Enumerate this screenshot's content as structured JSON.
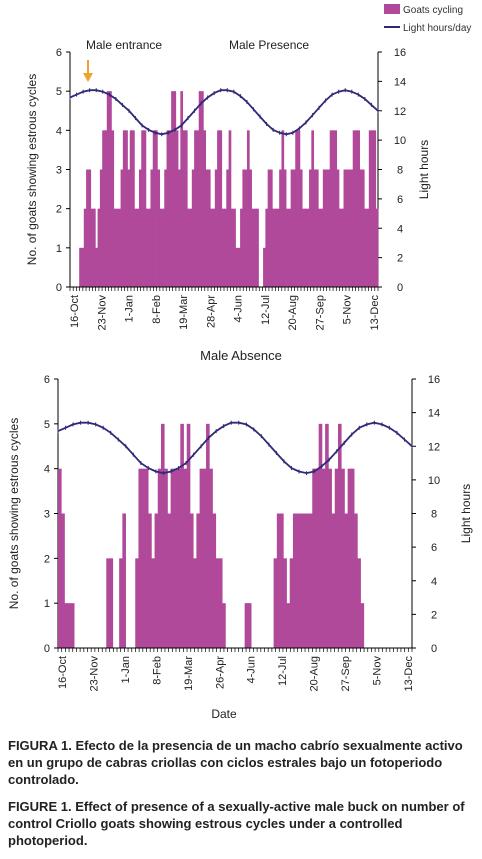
{
  "legend": {
    "bars": "Goats cycling",
    "line": "Light hours/day"
  },
  "colors": {
    "bar": "#b1499a",
    "line": "#2f2a78",
    "arrow": "#f0a030"
  },
  "chart_data": [
    {
      "type": "bar",
      "annotations": [
        "Male entrance",
        "Male Presence"
      ],
      "xlabel": "",
      "ylabel": "No. of goats showing estrous cycles",
      "y2label": "Light hours",
      "ylim": [
        0,
        6
      ],
      "y2lim": [
        0,
        16
      ],
      "yticks": [
        "0",
        "1",
        "2",
        "3",
        "4",
        "5",
        "6"
      ],
      "y2ticks": [
        "0",
        "2",
        "4",
        "6",
        "8",
        "10",
        "12",
        "14",
        "16"
      ],
      "categories": [
        "16-Oct",
        "23-Nov",
        "1-Jan",
        "8-Feb",
        "19-Mar",
        "28-Apr",
        "4-Jun",
        "12-Jul",
        "20-Aug",
        "27-Sep",
        "5-Nov",
        "13-Dec"
      ],
      "series_bars": {
        "name": "Goats cycling",
        "values": [
          0,
          0,
          0,
          0,
          1,
          1,
          2,
          3,
          3,
          2,
          2,
          1,
          2,
          3,
          4,
          4,
          5,
          5,
          4,
          2,
          2,
          2,
          3,
          4,
          4,
          3,
          4,
          4,
          2,
          2,
          3,
          4,
          4,
          2,
          2,
          3,
          4,
          4,
          3,
          2,
          2,
          3,
          4,
          4,
          5,
          5,
          4,
          3,
          5,
          4,
          4,
          2,
          2,
          3,
          4,
          4,
          5,
          5,
          4,
          3,
          3,
          2,
          2,
          3,
          4,
          4,
          2,
          2,
          3,
          4,
          2,
          2,
          1,
          1,
          2,
          3,
          3,
          4,
          3,
          2,
          2,
          2,
          0,
          0,
          1,
          2,
          3,
          3,
          2,
          2,
          2,
          3,
          4,
          3,
          2,
          2,
          3,
          3,
          4,
          4,
          3,
          2,
          2,
          2,
          3,
          4,
          3,
          3,
          2,
          2,
          3,
          3,
          3,
          4,
          4,
          4,
          3,
          2,
          2,
          3,
          3,
          3,
          3,
          4,
          4,
          4,
          3,
          3,
          2,
          2,
          4,
          4,
          4,
          2
        ]
      },
      "series_line": {
        "name": "Light hours/day",
        "values": [
          12.9,
          13.1,
          13.3,
          13.4,
          13.4,
          13.3,
          13.1,
          12.8,
          12.4,
          12.0,
          11.5,
          11.0,
          10.7,
          10.5,
          10.4,
          10.5,
          10.7,
          11.0,
          11.5,
          12.0,
          12.5,
          12.9,
          13.2,
          13.4,
          13.4,
          13.3,
          13.0,
          12.6,
          12.1,
          11.6,
          11.1,
          10.7,
          10.5,
          10.4,
          10.5,
          10.8,
          11.2,
          11.7,
          12.2,
          12.7,
          13.1,
          13.3,
          13.4,
          13.3,
          13.1,
          12.8,
          12.4,
          12.0
        ]
      },
      "note": "Male entrance marked with arrow at ~23-Nov"
    },
    {
      "type": "bar",
      "title": "Male Absence",
      "xlabel": "Date",
      "ylabel": "No. of goats showing estrous cycles",
      "y2label": "Light hours",
      "ylim": [
        0,
        6
      ],
      "y2lim": [
        0,
        16
      ],
      "yticks": [
        "0",
        "1",
        "2",
        "3",
        "4",
        "5",
        "6"
      ],
      "y2ticks": [
        "0",
        "2",
        "4",
        "6",
        "8",
        "10",
        "12",
        "14",
        "16"
      ],
      "categories": [
        "16-Oct",
        "23-Nov",
        "1-Jan",
        "8-Feb",
        "19-Mar",
        "26-Apr",
        "4-Jun",
        "12-Jul",
        "20-Aug",
        "27-Sep",
        "5-Nov",
        "13-Dec"
      ],
      "series_bars": {
        "name": "Goats cycling",
        "values": [
          4,
          3,
          1,
          1,
          1,
          0,
          0,
          0,
          0,
          0,
          0,
          0,
          0,
          0,
          0,
          2,
          2,
          0,
          0,
          2,
          3,
          0,
          0,
          0,
          2,
          4,
          4,
          4,
          3,
          2,
          3,
          4,
          5,
          4,
          3,
          4,
          4,
          4,
          5,
          4,
          5,
          3,
          2,
          3,
          4,
          4,
          5,
          4,
          3,
          2,
          2,
          1,
          0,
          0,
          0,
          0,
          0,
          0,
          1,
          1,
          0,
          0,
          0,
          0,
          0,
          0,
          0,
          2,
          3,
          3,
          2,
          1,
          2,
          3,
          3,
          3,
          3,
          3,
          3,
          4,
          4,
          5,
          4,
          5,
          4,
          3,
          4,
          5,
          4,
          3,
          4,
          4,
          3,
          2,
          1,
          0,
          0,
          0,
          0,
          0,
          0,
          0,
          0,
          0,
          0,
          0,
          0,
          0,
          0,
          0
        ]
      },
      "series_line": {
        "name": "Light hours/day",
        "values": [
          12.9,
          13.1,
          13.3,
          13.4,
          13.4,
          13.3,
          13.1,
          12.8,
          12.4,
          12.0,
          11.5,
          11.0,
          10.7,
          10.5,
          10.4,
          10.5,
          10.7,
          11.0,
          11.5,
          12.0,
          12.5,
          12.9,
          13.2,
          13.4,
          13.4,
          13.3,
          13.0,
          12.6,
          12.1,
          11.6,
          11.1,
          10.7,
          10.5,
          10.4,
          10.5,
          10.8,
          11.2,
          11.7,
          12.2,
          12.7,
          13.1,
          13.3,
          13.4,
          13.3,
          13.1,
          12.8,
          12.4,
          12.0
        ]
      }
    }
  ],
  "captions": {
    "es_label": "FIGURA 1.",
    "es_text": "Efecto de la presencia de un macho cabrío sexualmente activo en un grupo de cabras criollas con ciclos estrales bajo un fotoperiodo controlado.",
    "en_label": "FIGURE 1.",
    "en_text": "Effect of presence of a sexually-active male buck on number of control Criollo goats showing estrous cycles under a controlled photoperiod."
  }
}
